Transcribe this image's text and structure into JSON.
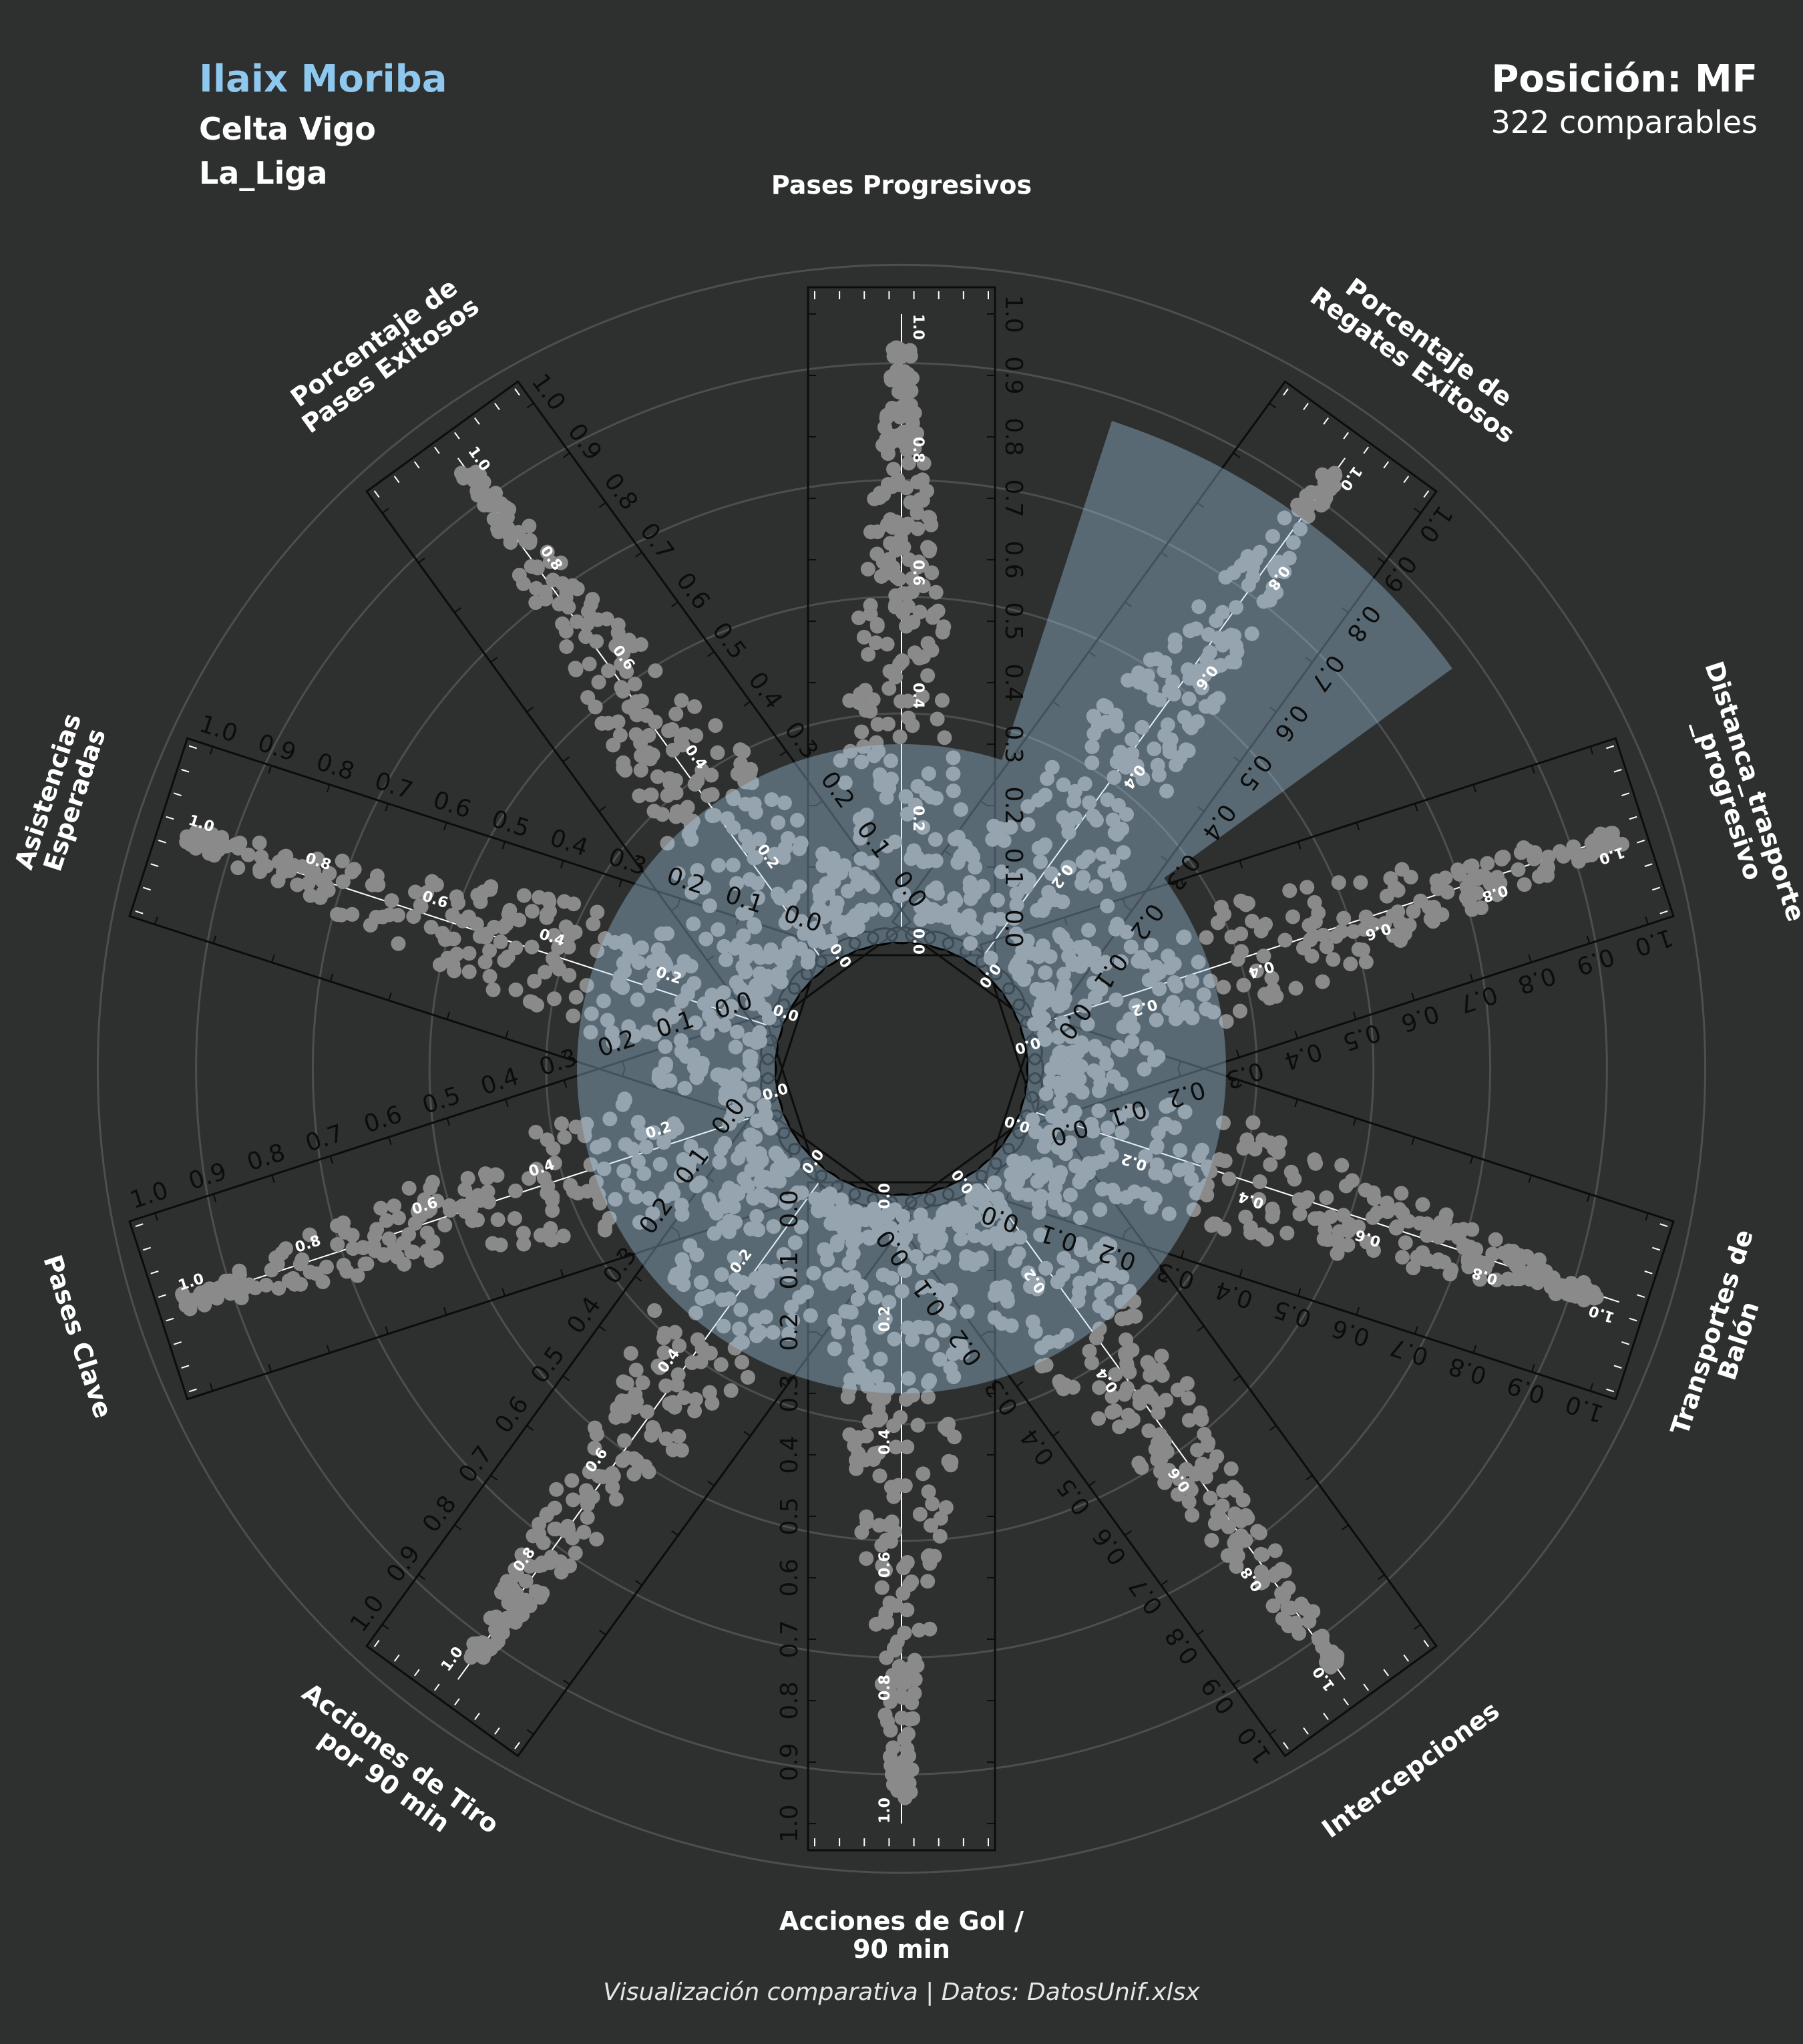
{
  "header": {
    "player": "Ilaix Moriba",
    "team": "Celta Vigo",
    "league": "La_Liga",
    "position": "Posición: MF",
    "comparables": "322 comparables"
  },
  "footer": "Visualización comparativa | Datos: DatosUnif.xlsx",
  "colors": {
    "background": "#2e3030",
    "player": "#8ec8ee",
    "dots": "#8a8a8a",
    "player_bar": "#a9d4f2",
    "ring": "#5a5c5c"
  },
  "chart_data": {
    "type": "bar",
    "subtype": "polar-bar-with-beeswarm",
    "ylim": [
      0,
      1
    ],
    "axis_ticks": [
      "0.0",
      "0.1",
      "0.2",
      "0.3",
      "0.4",
      "0.5",
      "0.6",
      "0.7",
      "0.8",
      "0.9",
      "1.0"
    ],
    "inner_ticks": [
      "0.0",
      "0.2",
      "0.4",
      "0.6",
      "0.8",
      "1.0"
    ],
    "categories": [
      "Pases Progresivos",
      "Porcentaje de\nRegates Exitosos",
      "Distanca_trasporte\n_progresivo",
      "Transportes de\nBalón",
      "Intercepciones",
      "Acciones de Gol /\n90 min",
      "Acciones de Tiro\npor 90 min",
      "Pases Clave",
      "Asistencias\nEsperadas",
      "Porcentaje de\nPases Exitosos"
    ],
    "values": [
      0.3,
      0.88,
      0.3,
      0.3,
      0.3,
      0.3,
      0.3,
      0.3,
      0.3,
      0.3
    ],
    "distribution_min": [
      0.0,
      0.0,
      0.0,
      0.0,
      0.0,
      0.0,
      0.0,
      0.0,
      0.0,
      0.0
    ],
    "distribution_max": [
      0.95,
      0.97,
      1.0,
      0.97,
      0.97,
      0.96,
      0.96,
      1.0,
      1.0,
      0.98
    ]
  }
}
